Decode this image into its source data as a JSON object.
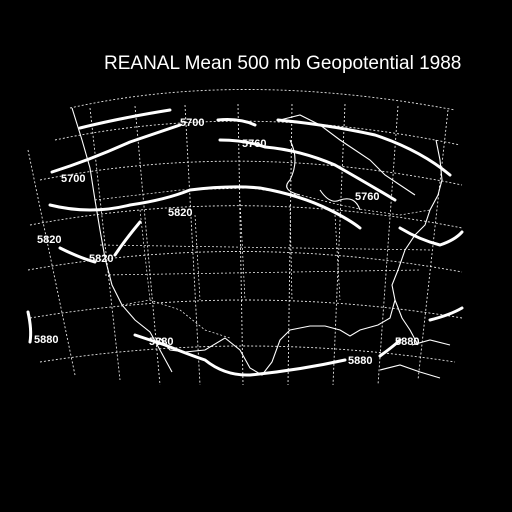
{
  "title": "REANAL Mean 500 mb Geopotential 1988",
  "colors": {
    "background": "#000000",
    "foreground": "#ffffff"
  },
  "contour_labels": [
    "5700",
    "5760",
    "5820",
    "5880"
  ],
  "labels": {
    "c5700_a": "5700",
    "c5700_b": "5700",
    "c5760_a": "5760",
    "c5760_b": "5760",
    "c5820_a": "5820",
    "c5820_b": "5820",
    "c5820_c": "5820",
    "c5880_a": "5880",
    "c5880_b": "5880",
    "c5880_c": "5880",
    "c5880_d": "5880"
  }
}
